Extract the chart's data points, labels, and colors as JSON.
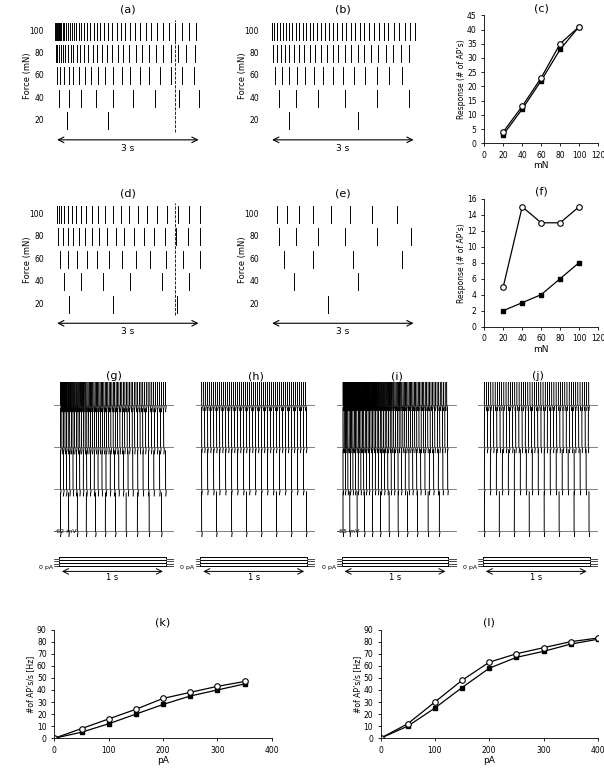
{
  "panel_c": {
    "title": "(c)",
    "xlabel": "mN",
    "ylabel": "Response (# of AP’s)",
    "xlim": [
      0,
      120
    ],
    "ylim": [
      0,
      45
    ],
    "xticks": [
      0,
      20,
      40,
      60,
      80,
      100,
      120
    ],
    "yticks": [
      0,
      5,
      10,
      15,
      20,
      25,
      30,
      35,
      40,
      45
    ],
    "series1_x": [
      20,
      40,
      60,
      80,
      100
    ],
    "series1_y": [
      3,
      12,
      22,
      33,
      41
    ],
    "series2_x": [
      20,
      40,
      60,
      80,
      100
    ],
    "series2_y": [
      4,
      13,
      23,
      35,
      41
    ]
  },
  "panel_f": {
    "title": "(f)",
    "xlabel": "mN",
    "ylabel": "Response (# of AP’s)",
    "xlim": [
      0,
      120
    ],
    "ylim": [
      0,
      16
    ],
    "xticks": [
      0,
      20,
      40,
      60,
      80,
      100,
      120
    ],
    "yticks": [
      0,
      2,
      4,
      6,
      8,
      10,
      12,
      14,
      16
    ],
    "series1_x": [
      20,
      40,
      60,
      80,
      100
    ],
    "series1_y": [
      2,
      3,
      4,
      6,
      8
    ],
    "series2_x": [
      20,
      40,
      60,
      80,
      100
    ],
    "series2_y": [
      5,
      15,
      13,
      13,
      15
    ]
  },
  "panel_k": {
    "title": "(k)",
    "xlabel": "pA",
    "ylabel": "#of AP’s/s [Hz]",
    "xlim": [
      0,
      400
    ],
    "ylim": [
      0,
      90
    ],
    "xticks": [
      0,
      100,
      200,
      300,
      400
    ],
    "yticks": [
      0,
      10,
      20,
      30,
      40,
      50,
      60,
      70,
      80,
      90
    ],
    "series1_x": [
      0,
      50,
      100,
      150,
      200,
      250,
      300,
      350
    ],
    "series1_y": [
      0,
      5,
      12,
      20,
      28,
      35,
      40,
      45
    ],
    "series2_x": [
      0,
      50,
      100,
      150,
      200,
      250,
      300,
      350
    ],
    "series2_y": [
      0,
      8,
      16,
      24,
      33,
      38,
      43,
      47
    ]
  },
  "panel_l": {
    "title": "(l)",
    "xlabel": "pA",
    "ylabel": "#of AP’s/s [Hz]",
    "xlim": [
      0,
      400
    ],
    "ylim": [
      0,
      90
    ],
    "xticks": [
      0,
      100,
      200,
      300,
      400
    ],
    "yticks": [
      0,
      10,
      20,
      30,
      40,
      50,
      60,
      70,
      80,
      90
    ],
    "series1_x": [
      0,
      50,
      100,
      150,
      200,
      250,
      300,
      350,
      400
    ],
    "series1_y": [
      0,
      10,
      25,
      42,
      58,
      67,
      72,
      78,
      82
    ],
    "series2_x": [
      0,
      50,
      100,
      150,
      200,
      250,
      300,
      350,
      400
    ],
    "series2_y": [
      0,
      12,
      30,
      48,
      63,
      70,
      75,
      80,
      83
    ]
  },
  "raster_a_spikes": {
    "100": [
      0.02,
      0.04,
      0.06,
      0.08,
      0.1,
      0.12,
      0.14,
      0.17,
      0.2,
      0.23,
      0.27,
      0.31,
      0.35,
      0.4,
      0.45,
      0.5,
      0.55,
      0.61,
      0.67,
      0.73,
      0.8,
      0.87,
      0.94,
      1.02,
      1.1,
      1.18,
      1.27,
      1.36,
      1.45,
      1.55,
      1.65,
      1.75,
      1.86,
      1.97,
      2.09,
      2.21,
      2.34,
      2.47,
      2.61,
      2.75,
      2.89
    ],
    "80": [
      0.03,
      0.06,
      0.09,
      0.13,
      0.17,
      0.22,
      0.27,
      0.33,
      0.39,
      0.46,
      0.53,
      0.61,
      0.69,
      0.78,
      0.87,
      0.97,
      1.07,
      1.18,
      1.29,
      1.41,
      1.53,
      1.66,
      1.79,
      1.93,
      2.07,
      2.22,
      2.37,
      2.53,
      2.69,
      2.86
    ],
    "60": [
      0.05,
      0.12,
      0.2,
      0.29,
      0.39,
      0.5,
      0.62,
      0.75,
      0.89,
      1.04,
      1.2,
      1.37,
      1.55,
      1.74,
      1.94,
      2.15,
      2.37,
      2.6,
      2.84
    ],
    "40": [
      0.1,
      0.3,
      0.55,
      0.85,
      1.2,
      1.6,
      2.05,
      2.55,
      2.95
    ],
    "20": [
      0.25,
      1.1
    ]
  },
  "raster_b_spikes": {
    "100": [
      0.05,
      0.1,
      0.16,
      0.22,
      0.28,
      0.34,
      0.4,
      0.47,
      0.54,
      0.61,
      0.68,
      0.75,
      0.82,
      0.9,
      0.98,
      1.06,
      1.14,
      1.22,
      1.3,
      1.39,
      1.48,
      1.57,
      1.66,
      1.75,
      1.84,
      1.93,
      2.03,
      2.13,
      2.23,
      2.33,
      2.43,
      2.54,
      2.65,
      2.76,
      2.87,
      2.98
    ],
    "80": [
      0.07,
      0.15,
      0.23,
      0.32,
      0.41,
      0.51,
      0.61,
      0.71,
      0.82,
      0.93,
      1.05,
      1.17,
      1.29,
      1.41,
      1.54,
      1.67,
      1.8,
      1.94,
      2.08,
      2.22,
      2.37,
      2.52,
      2.68,
      2.84
    ],
    "60": [
      0.12,
      0.25,
      0.4,
      0.56,
      0.73,
      0.91,
      1.1,
      1.3,
      1.51,
      1.73,
      1.96,
      2.2,
      2.45,
      2.71
    ],
    "40": [
      0.2,
      0.55,
      1.0,
      1.55,
      2.2,
      2.85
    ],
    "20": [
      0.4,
      1.8
    ]
  },
  "raster_d_spikes": {
    "100": [
      0.05,
      0.09,
      0.14,
      0.2,
      0.27,
      0.35,
      0.44,
      0.54,
      0.65,
      0.77,
      0.9,
      1.04,
      1.19,
      1.35,
      1.52,
      1.7,
      1.89,
      2.09,
      2.3,
      2.52,
      2.75,
      2.98
    ],
    "80": [
      0.08,
      0.17,
      0.27,
      0.38,
      0.5,
      0.63,
      0.77,
      0.92,
      1.08,
      1.25,
      1.43,
      1.62,
      1.82,
      2.03,
      2.25,
      2.48,
      2.72,
      2.97
    ],
    "60": [
      0.12,
      0.28,
      0.46,
      0.66,
      0.88,
      1.12,
      1.38,
      1.66,
      1.96,
      2.28,
      2.62,
      2.97
    ],
    "40": [
      0.2,
      0.55,
      1.0,
      1.55,
      2.2,
      2.75
    ],
    "20": [
      0.3,
      1.2,
      2.5
    ]
  },
  "raster_e_spikes": {
    "100": [
      0.15,
      0.35,
      0.6,
      0.9,
      1.25,
      1.65,
      2.1,
      2.6
    ],
    "80": [
      0.2,
      0.55,
      1.0,
      1.55,
      2.2,
      2.9
    ],
    "60": [
      0.3,
      0.9,
      1.7,
      2.7
    ],
    "40": [
      0.5,
      1.8
    ],
    "20": [
      1.2
    ]
  },
  "forces": [
    20,
    40,
    60,
    80,
    100
  ]
}
